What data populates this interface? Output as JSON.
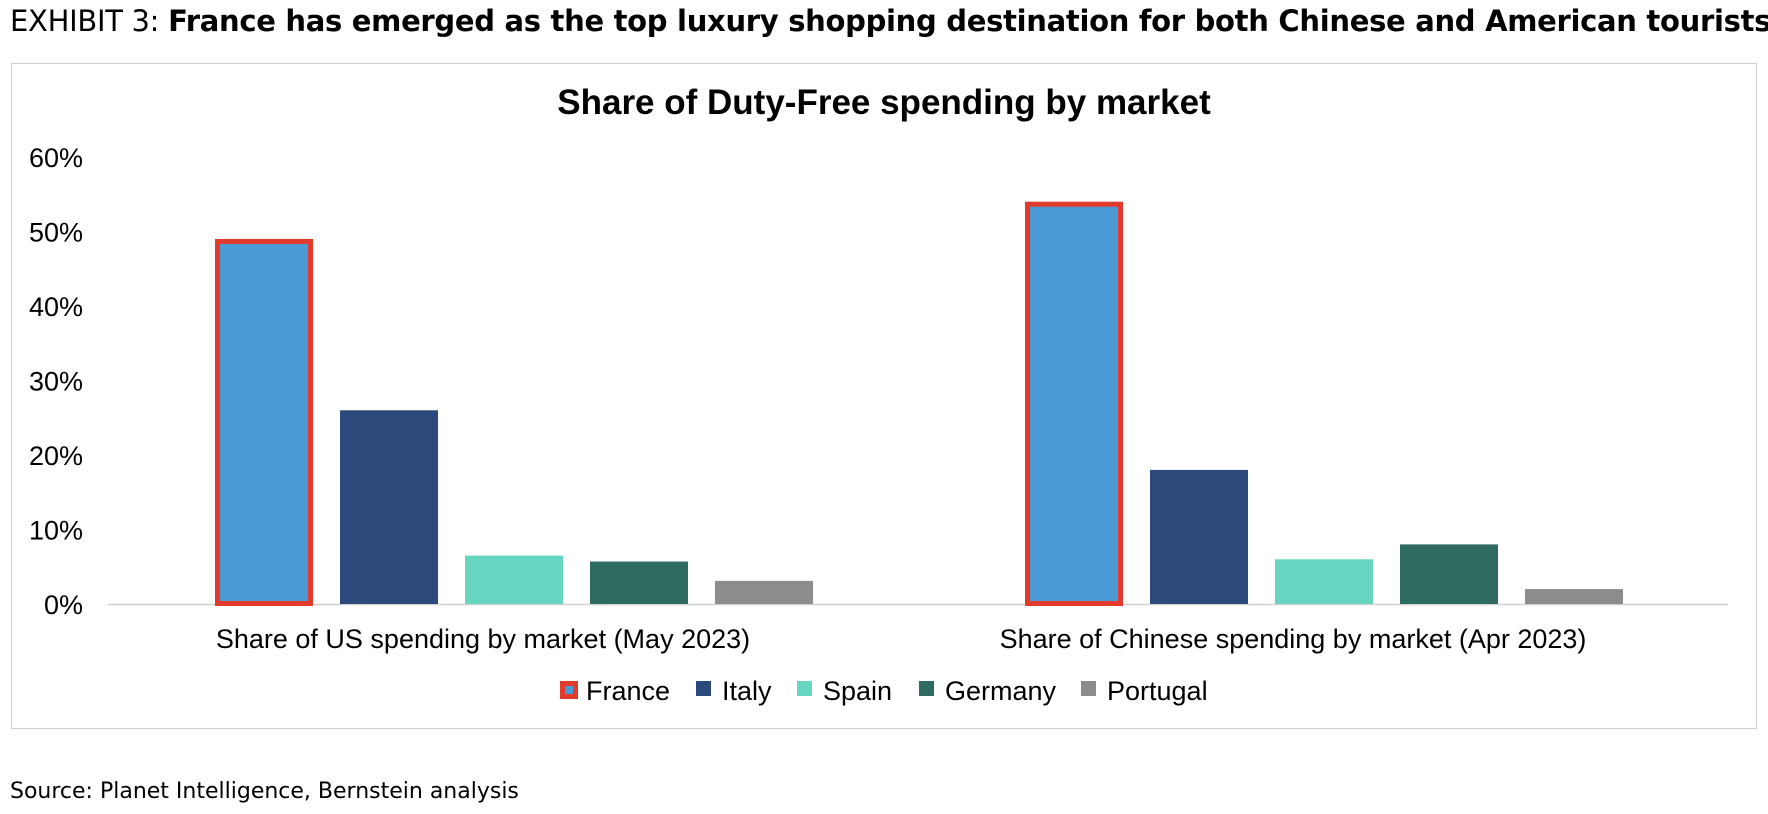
{
  "header": {
    "exhibit_label": "EXHIBIT 3:",
    "headline": "France has emerged as the top luxury shopping destination for both Chinese and American tourists..."
  },
  "source": "Source: Planet Intelligence, Bernstein analysis",
  "chart_data": {
    "type": "bar",
    "title": "Share of Duty-Free spending by market",
    "categories": [
      "Share of US spending by market (May 2023)",
      "Share of Chinese spending by market (Apr 2023)"
    ],
    "series": [
      {
        "name": "France",
        "values": [
          0.49,
          0.54
        ],
        "color": "#4a9ad5",
        "highlight": "#e23b2e"
      },
      {
        "name": "Italy",
        "values": [
          0.26,
          0.18
        ],
        "color": "#2b4a7b"
      },
      {
        "name": "Spain",
        "values": [
          0.065,
          0.06
        ],
        "color": "#66d6c1"
      },
      {
        "name": "Germany",
        "values": [
          0.057,
          0.08
        ],
        "color": "#2f6b61"
      },
      {
        "name": "Portugal",
        "values": [
          0.031,
          0.02
        ],
        "color": "#8c8c8c"
      }
    ],
    "yticks": [
      "0%",
      "10%",
      "20%",
      "30%",
      "40%",
      "50%",
      "60%"
    ],
    "ylim": [
      0,
      0.6
    ],
    "legend": "bottom"
  }
}
